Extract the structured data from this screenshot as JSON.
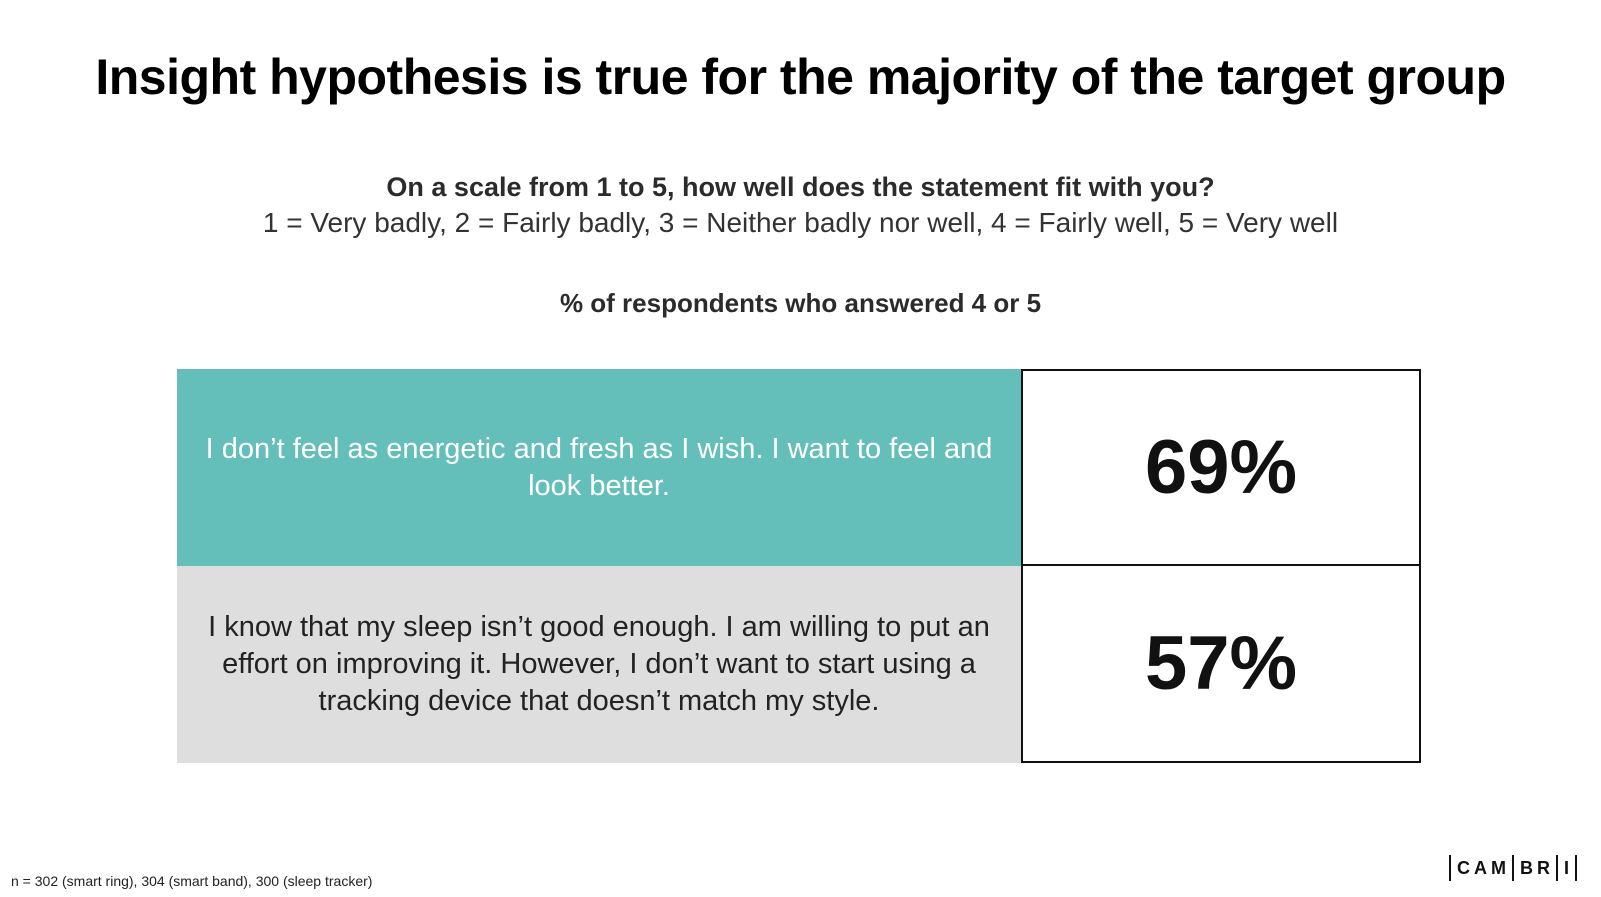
{
  "title": "Insight hypothesis is true for the majority of the target group",
  "question": "On a scale from 1 to 5, how well does the statement fit with you?",
  "scale": "1 = Very badly, 2 = Fairly badly, 3 = Neither badly nor well, 4 = Fairly well, 5 = Very well",
  "metric_label": "% of respondents who answered 4 or 5",
  "rows": [
    {
      "statement": "I don’t feel as energetic and fresh as I wish. I want to feel and look better.",
      "value": "69%",
      "color": "#64bfba"
    },
    {
      "statement": "I know that my sleep isn’t good enough. I am willing to put an effort on improving it. However, I don’t want to start using a tracking device that doesn’t match my style.",
      "value": "57%",
      "color": "#dedede"
    }
  ],
  "footnote": "n = 302 (smart ring), 304 (smart band), 300 (sleep tracker)",
  "logo": {
    "segments": [
      "CAM",
      "BR",
      "I"
    ]
  }
}
